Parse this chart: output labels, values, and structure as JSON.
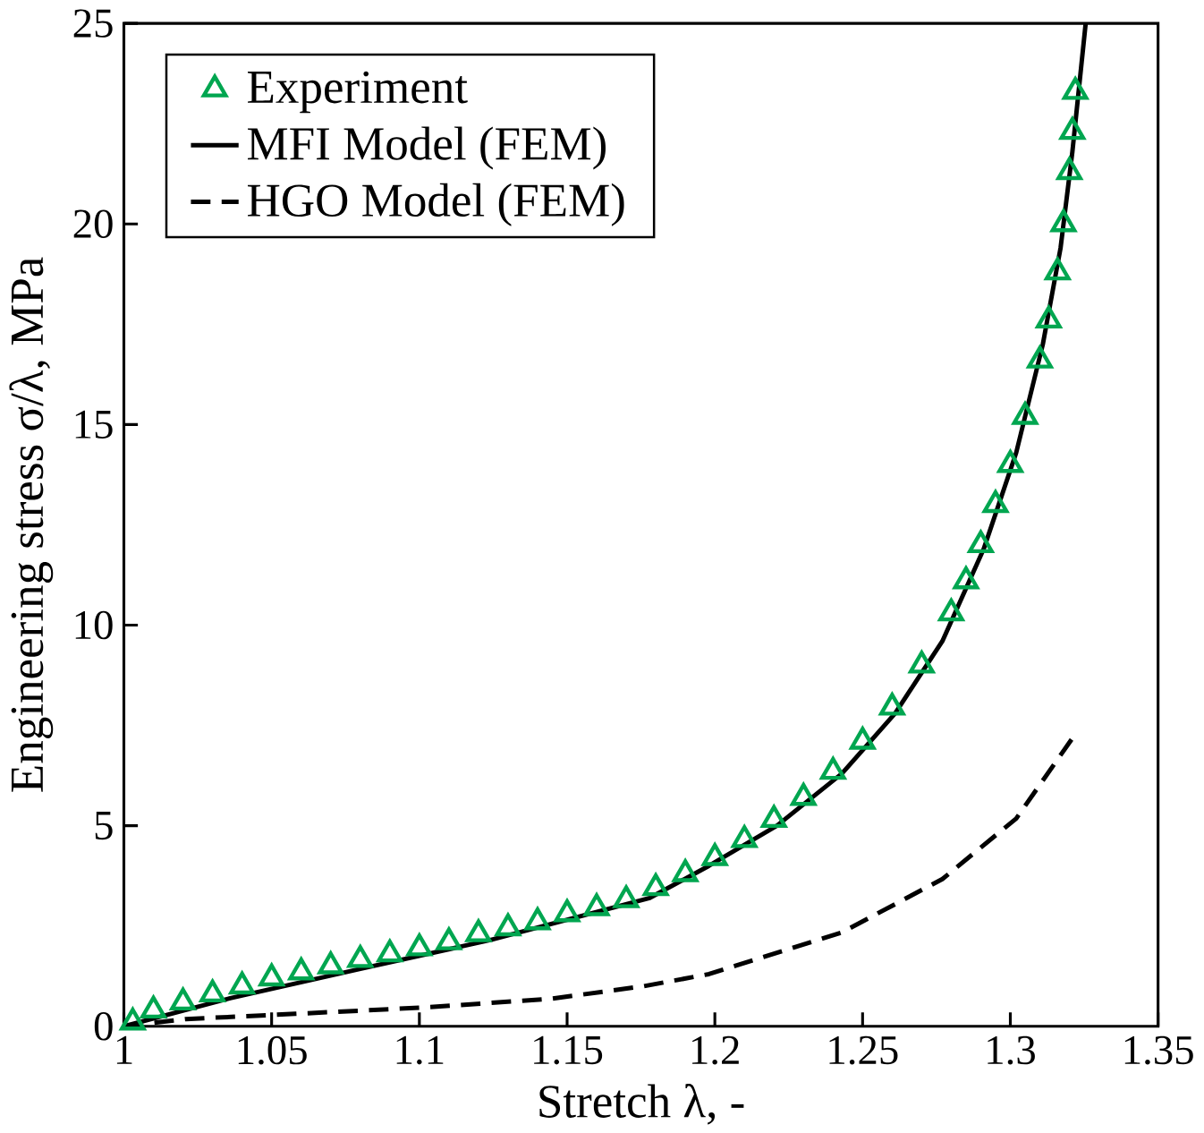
{
  "chart_data": {
    "type": "line",
    "xlabel": "Stretch   λ,   -",
    "ylabel": "Engineering stress   σ/λ,   MPa",
    "xlim": [
      1,
      1.35
    ],
    "xticks": [
      1,
      1.05,
      1.1,
      1.15,
      1.2,
      1.25,
      1.3,
      1.35
    ],
    "ylim": [
      0,
      25
    ],
    "yticks": [
      0,
      5,
      10,
      15,
      20,
      25
    ],
    "grid": false,
    "legend": "top left",
    "series": [
      {
        "name": "Experiment",
        "type": "scatter",
        "marker": "triangle",
        "color": "#00a650",
        "x": [
          1.003,
          1.01,
          1.02,
          1.03,
          1.04,
          1.05,
          1.06,
          1.07,
          1.08,
          1.09,
          1.1,
          1.11,
          1.12,
          1.13,
          1.14,
          1.15,
          1.16,
          1.17,
          1.18,
          1.19,
          1.2,
          1.21,
          1.22,
          1.23,
          1.24,
          1.25,
          1.26,
          1.27,
          1.28,
          1.285,
          1.29,
          1.295,
          1.3,
          1.305,
          1.31,
          1.313,
          1.316,
          1.318,
          1.32,
          1.321,
          1.322
        ],
        "values": [
          0.1,
          0.4,
          0.6,
          0.8,
          1.0,
          1.2,
          1.35,
          1.5,
          1.66,
          1.8,
          1.95,
          2.1,
          2.3,
          2.45,
          2.6,
          2.8,
          2.95,
          3.15,
          3.45,
          3.8,
          4.2,
          4.65,
          5.15,
          5.7,
          6.35,
          7.1,
          7.95,
          9.0,
          10.3,
          11.1,
          12.0,
          13.0,
          14.0,
          15.2,
          16.6,
          17.6,
          18.8,
          20.0,
          21.3,
          22.3,
          23.3
        ]
      },
      {
        "name": "MFI Model (FEM)",
        "line_style": "solid",
        "color": "#000000",
        "x": [
          1.0,
          1.036,
          1.08,
          1.124,
          1.178,
          1.198,
          1.221,
          1.243,
          1.261,
          1.277,
          1.291,
          1.302,
          1.311,
          1.317,
          1.321,
          1.3255
        ],
        "values": [
          0,
          0.7,
          1.43,
          2.15,
          3.2,
          4.0,
          5.0,
          6.3,
          7.8,
          9.6,
          11.9,
          14.3,
          17.0,
          19.4,
          21.8,
          25
        ]
      },
      {
        "name": "HGO Model (FEM)",
        "line_style": "dashed",
        "color": "#000000",
        "x": [
          1.0,
          1.021,
          1.058,
          1.102,
          1.145,
          1.176,
          1.198,
          1.243,
          1.277,
          1.302,
          1.321
        ],
        "values": [
          0,
          0.18,
          0.31,
          0.47,
          0.69,
          1.0,
          1.3,
          2.34,
          3.67,
          5.18,
          7.18
        ]
      }
    ]
  }
}
